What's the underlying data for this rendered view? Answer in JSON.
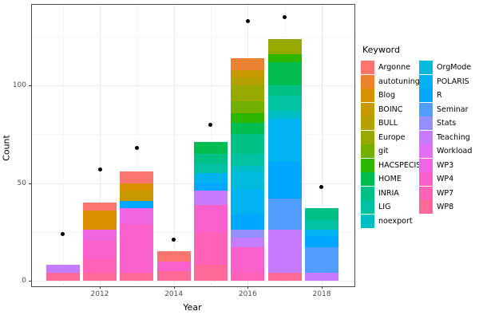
{
  "chart_data": {
    "type": "bar",
    "stacked": true,
    "points_overlay": true,
    "title": "",
    "xlabel": "Year",
    "ylabel": "Count",
    "legend_title": "Keyword",
    "legend_position": "right",
    "grid": "on",
    "ylim": [
      0,
      141
    ],
    "y_major_ticks": [
      0,
      50,
      100
    ],
    "y_minor_gridlines": [
      25,
      75,
      125
    ],
    "x_labeled_ticks": [
      2012,
      2014,
      2016,
      2018
    ],
    "x_all_years": [
      2011,
      2012,
      2013,
      2014,
      2015,
      2016,
      2017,
      2018
    ],
    "keywords": [
      {
        "name": "Argonne",
        "color": "#F8766D"
      },
      {
        "name": "autotuning",
        "color": "#EA8331"
      },
      {
        "name": "Blog",
        "color": "#D89000"
      },
      {
        "name": "BOINC",
        "color": "#C69900"
      },
      {
        "name": "BULL",
        "color": "#B2A100"
      },
      {
        "name": "Europe",
        "color": "#97A900"
      },
      {
        "name": "git",
        "color": "#72B000"
      },
      {
        "name": "HACSPECIS",
        "color": "#2FB600"
      },
      {
        "name": "HOME",
        "color": "#00BC51"
      },
      {
        "name": "INRIA",
        "color": "#00C085"
      },
      {
        "name": "LIG",
        "color": "#00C1A2"
      },
      {
        "name": "noexport",
        "color": "#00BFC4"
      },
      {
        "name": "OrgMode",
        "color": "#00BBDC"
      },
      {
        "name": "POLARIS",
        "color": "#00B3F0"
      },
      {
        "name": "R",
        "color": "#00A7FF"
      },
      {
        "name": "Seminar",
        "color": "#529EFF"
      },
      {
        "name": "Stats",
        "color": "#9590FF"
      },
      {
        "name": "Teaching",
        "color": "#C77CFF"
      },
      {
        "name": "Workload",
        "color": "#E36EF6"
      },
      {
        "name": "WP3",
        "color": "#F066E2"
      },
      {
        "name": "WP4",
        "color": "#FB61CC"
      },
      {
        "name": "WP7",
        "color": "#FF62B6"
      },
      {
        "name": "WP8",
        "color": "#FF6A9A"
      }
    ],
    "bars": [
      {
        "year": 2011,
        "total": 8,
        "point": 24,
        "segments": [
          {
            "k": "Teaching",
            "v": 4
          },
          {
            "k": "WP8",
            "v": 4
          }
        ]
      },
      {
        "year": 2012,
        "total": 40,
        "point": 57,
        "segments": [
          {
            "k": "Argonne",
            "v": 4
          },
          {
            "k": "Blog",
            "v": 10
          },
          {
            "k": "WP3",
            "v": 5
          },
          {
            "k": "WP4",
            "v": 10
          },
          {
            "k": "WP7",
            "v": 7
          },
          {
            "k": "WP8",
            "v": 4
          }
        ]
      },
      {
        "year": 2013,
        "total": 56,
        "point": 68,
        "segments": [
          {
            "k": "Argonne",
            "v": 6
          },
          {
            "k": "Blog",
            "v": 4
          },
          {
            "k": "BOINC",
            "v": 5
          },
          {
            "k": "R",
            "v": 4
          },
          {
            "k": "WP3",
            "v": 8
          },
          {
            "k": "WP4",
            "v": 25
          },
          {
            "k": "WP8",
            "v": 4
          }
        ]
      },
      {
        "year": 2014,
        "total": 15,
        "point": 21,
        "segments": [
          {
            "k": "Argonne",
            "v": 5
          },
          {
            "k": "WP4",
            "v": 5
          },
          {
            "k": "WP8",
            "v": 5
          }
        ]
      },
      {
        "year": 2015,
        "total": 71,
        "point": 80,
        "segments": [
          {
            "k": "HOME",
            "v": 6
          },
          {
            "k": "INRIA",
            "v": 5
          },
          {
            "k": "LIG",
            "v": 5
          },
          {
            "k": "POLARIS",
            "v": 5
          },
          {
            "k": "R",
            "v": 4
          },
          {
            "k": "Teaching",
            "v": 7
          },
          {
            "k": "WP4",
            "v": 14
          },
          {
            "k": "WP7",
            "v": 17
          },
          {
            "k": "WP8",
            "v": 8
          }
        ]
      },
      {
        "year": 2016,
        "total": 114,
        "point": 133,
        "segments": [
          {
            "k": "autotuning",
            "v": 6
          },
          {
            "k": "BOINC",
            "v": 4
          },
          {
            "k": "BULL",
            "v": 4
          },
          {
            "k": "Europe",
            "v": 8
          },
          {
            "k": "git",
            "v": 6
          },
          {
            "k": "HACSPECIS",
            "v": 5
          },
          {
            "k": "HOME",
            "v": 6
          },
          {
            "k": "INRIA",
            "v": 10
          },
          {
            "k": "LIG",
            "v": 6
          },
          {
            "k": "noexport",
            "v": 3
          },
          {
            "k": "OrgMode",
            "v": 9
          },
          {
            "k": "POLARIS",
            "v": 13
          },
          {
            "k": "R",
            "v": 8
          },
          {
            "k": "Stats",
            "v": 4
          },
          {
            "k": "Teaching",
            "v": 5
          },
          {
            "k": "WP4",
            "v": 13
          },
          {
            "k": "WP7",
            "v": 4
          }
        ]
      },
      {
        "year": 2017,
        "total": 124,
        "point": 135,
        "segments": [
          {
            "k": "Europe",
            "v": 8
          },
          {
            "k": "HACSPECIS",
            "v": 4
          },
          {
            "k": "HOME",
            "v": 12
          },
          {
            "k": "INRIA",
            "v": 5
          },
          {
            "k": "LIG",
            "v": 8
          },
          {
            "k": "noexport",
            "v": 4
          },
          {
            "k": "POLARIS",
            "v": 22
          },
          {
            "k": "R",
            "v": 19
          },
          {
            "k": "Seminar",
            "v": 16
          },
          {
            "k": "Teaching",
            "v": 22
          },
          {
            "k": "WP8",
            "v": 4
          }
        ]
      },
      {
        "year": 2018,
        "total": 37,
        "point": 48,
        "segments": [
          {
            "k": "INRIA",
            "v": 6
          },
          {
            "k": "LIG",
            "v": 5
          },
          {
            "k": "POLARIS",
            "v": 3
          },
          {
            "k": "R",
            "v": 6
          },
          {
            "k": "Seminar",
            "v": 13
          },
          {
            "k": "Teaching",
            "v": 4
          }
        ]
      }
    ],
    "legend_columns": [
      [
        "Argonne",
        "autotuning",
        "Blog",
        "BOINC",
        "BULL",
        "Europe",
        "git",
        "HACSPECIS",
        "HOME",
        "INRIA",
        "LIG",
        "noexport"
      ],
      [
        "OrgMode",
        "POLARIS",
        "R",
        "Seminar",
        "Stats",
        "Teaching",
        "Workload",
        "WP3",
        "WP4",
        "WP7",
        "WP8"
      ]
    ]
  }
}
